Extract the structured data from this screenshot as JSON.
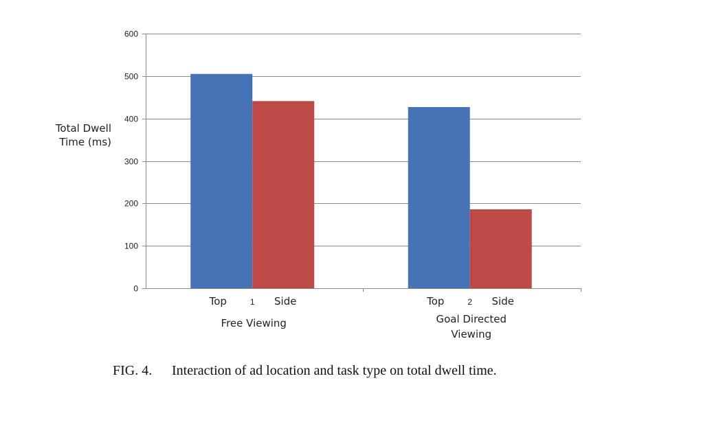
{
  "chart_data": {
    "type": "bar",
    "ylabel_lines": [
      "Total Dwell",
      "Time (ms)"
    ],
    "ylim": [
      0,
      600
    ],
    "yticks": [
      0,
      100,
      200,
      300,
      400,
      500,
      600
    ],
    "grid": true,
    "categories": [
      {
        "number": "1",
        "name_lines": [
          "Free Viewing"
        ],
        "bar_labels": [
          "Top",
          "Side"
        ]
      },
      {
        "number": "2",
        "name_lines": [
          "Goal Directed",
          "Viewing"
        ],
        "bar_labels": [
          "Top",
          "Side"
        ]
      }
    ],
    "series": [
      {
        "values": [
          505,
          427
        ],
        "color": "#4673B5"
      },
      {
        "values": [
          441,
          186
        ],
        "color": "#BE4A47"
      }
    ]
  },
  "caption": {
    "number": "FIG. 4.",
    "text": "Interaction of ad location and task type on total dwell time."
  }
}
